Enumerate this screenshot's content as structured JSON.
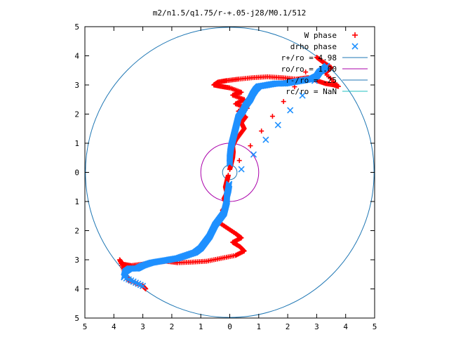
{
  "chart_data": {
    "type": "scatter",
    "title": "m2/n1.5/q1.75/r-+.05-j28/M0.1/512",
    "xlabel": "",
    "ylabel": "",
    "xlim": [
      -5,
      5
    ],
    "ylim": [
      -5,
      5
    ],
    "x_tick_values": [
      -5,
      -4,
      -3,
      -2,
      -1,
      0,
      1,
      2,
      3,
      4,
      5
    ],
    "x_tick_labels": [
      "5",
      "4",
      "3",
      "2",
      "1",
      "0",
      "1",
      "2",
      "3",
      "4",
      "5"
    ],
    "y_tick_values": [
      5,
      4,
      3,
      2,
      1,
      0,
      -1,
      -2,
      -3,
      -4,
      -5
    ],
    "y_tick_labels": [
      "5",
      "4",
      "3",
      "2",
      "1",
      "0",
      "1",
      "2",
      "3",
      "4",
      "5"
    ],
    "grid": false,
    "legend_position": "top-right",
    "series": [
      {
        "name": "W phase",
        "marker": "+",
        "color": "#ff0000",
        "points": [
          [
            0.0,
            0.1
          ],
          [
            0.05,
            0.3
          ],
          [
            0.1,
            0.5
          ],
          [
            0.12,
            0.7
          ],
          [
            0.1,
            0.9
          ],
          [
            0.2,
            1.1
          ],
          [
            0.35,
            1.3
          ],
          [
            0.5,
            1.5
          ],
          [
            0.4,
            1.7
          ],
          [
            0.55,
            1.9
          ],
          [
            0.3,
            2.1
          ],
          [
            0.6,
            2.2
          ],
          [
            0.2,
            2.35
          ],
          [
            0.5,
            2.5
          ],
          [
            0.1,
            2.65
          ],
          [
            0.4,
            2.75
          ],
          [
            0.0,
            2.9
          ],
          [
            -0.3,
            2.95
          ],
          [
            -0.55,
            3.0
          ],
          [
            -0.4,
            3.1
          ],
          [
            -0.1,
            3.15
          ],
          [
            0.3,
            3.2
          ],
          [
            0.8,
            3.25
          ],
          [
            1.3,
            3.28
          ],
          [
            1.8,
            3.25
          ],
          [
            2.3,
            3.2
          ],
          [
            2.7,
            3.25
          ],
          [
            3.0,
            3.15
          ],
          [
            3.3,
            3.05
          ],
          [
            3.6,
            3.0
          ],
          [
            3.75,
            2.95
          ],
          [
            3.3,
            3.4
          ],
          [
            3.5,
            3.6
          ],
          [
            3.2,
            3.8
          ],
          [
            3.0,
            3.95
          ],
          [
            -0.05,
            -0.1
          ],
          [
            -0.1,
            -0.3
          ],
          [
            -0.15,
            -0.5
          ],
          [
            -0.1,
            -0.7
          ],
          [
            -0.2,
            -0.9
          ],
          [
            -0.1,
            -1.1
          ],
          [
            -0.25,
            -1.3
          ],
          [
            -0.2,
            -1.5
          ],
          [
            -0.4,
            -1.7
          ],
          [
            -0.1,
            -1.9
          ],
          [
            0.2,
            -2.1
          ],
          [
            0.4,
            -2.25
          ],
          [
            0.1,
            -2.4
          ],
          [
            0.35,
            -2.55
          ],
          [
            0.5,
            -2.7
          ],
          [
            0.2,
            -2.85
          ],
          [
            -0.3,
            -2.95
          ],
          [
            -0.8,
            -3.05
          ],
          [
            -1.3,
            -3.08
          ],
          [
            -1.8,
            -3.1
          ],
          [
            -2.2,
            -3.05
          ],
          [
            -2.6,
            -3.1
          ],
          [
            -3.0,
            -3.15
          ],
          [
            -3.4,
            -3.2
          ],
          [
            -3.7,
            -3.15
          ],
          [
            -3.8,
            -3.0
          ],
          [
            -3.6,
            -3.5
          ],
          [
            -3.5,
            -3.7
          ],
          [
            -3.0,
            -3.9
          ],
          [
            -2.9,
            -4.0
          ]
        ]
      },
      {
        "name": "drho phase",
        "marker": "x",
        "color": "#1e90ff",
        "points": [
          [
            0.0,
            0.3
          ],
          [
            0.0,
            0.5
          ],
          [
            0.02,
            0.7
          ],
          [
            0.05,
            0.9
          ],
          [
            0.1,
            1.1
          ],
          [
            0.15,
            1.3
          ],
          [
            0.2,
            1.5
          ],
          [
            0.25,
            1.7
          ],
          [
            0.3,
            1.9
          ],
          [
            0.45,
            2.1
          ],
          [
            0.55,
            2.3
          ],
          [
            0.7,
            2.5
          ],
          [
            0.8,
            2.7
          ],
          [
            0.9,
            2.85
          ],
          [
            1.0,
            2.95
          ],
          [
            1.3,
            3.0
          ],
          [
            1.6,
            3.05
          ],
          [
            1.9,
            3.05
          ],
          [
            2.2,
            3.1
          ],
          [
            2.5,
            3.15
          ],
          [
            2.8,
            3.2
          ],
          [
            3.0,
            3.3
          ],
          [
            3.1,
            3.45
          ],
          [
            3.25,
            3.55
          ],
          [
            3.35,
            3.65
          ],
          [
            -0.02,
            -0.4
          ],
          [
            -0.05,
            -0.6
          ],
          [
            -0.1,
            -0.8
          ],
          [
            -0.1,
            -1.0
          ],
          [
            -0.15,
            -1.2
          ],
          [
            -0.2,
            -1.4
          ],
          [
            -0.35,
            -1.6
          ],
          [
            -0.5,
            -1.8
          ],
          [
            -0.6,
            -2.0
          ],
          [
            -0.7,
            -2.2
          ],
          [
            -0.85,
            -2.4
          ],
          [
            -1.0,
            -2.6
          ],
          [
            -1.2,
            -2.75
          ],
          [
            -1.5,
            -2.85
          ],
          [
            -1.8,
            -2.95
          ],
          [
            -2.1,
            -3.0
          ],
          [
            -2.4,
            -3.05
          ],
          [
            -2.7,
            -3.1
          ],
          [
            -3.0,
            -3.2
          ],
          [
            -3.2,
            -3.3
          ],
          [
            -3.45,
            -3.3
          ],
          [
            -3.6,
            -3.4
          ],
          [
            -3.65,
            -3.6
          ],
          [
            -3.0,
            -3.9
          ]
        ]
      },
      {
        "name": "r+/ro = 4.98",
        "type": "circle",
        "radius": 4.98,
        "color": "#1f77b4"
      },
      {
        "name": "ro/ro = 1.00",
        "type": "circle",
        "radius": 1.0,
        "color": "#aa00aa"
      },
      {
        "name": "r-/ro = .25",
        "type": "circle",
        "radius": 0.25,
        "color": "#1f77b4"
      },
      {
        "name": "rc/ro = NaN",
        "type": "circle",
        "radius": null,
        "color": "#20c0c0"
      }
    ]
  }
}
